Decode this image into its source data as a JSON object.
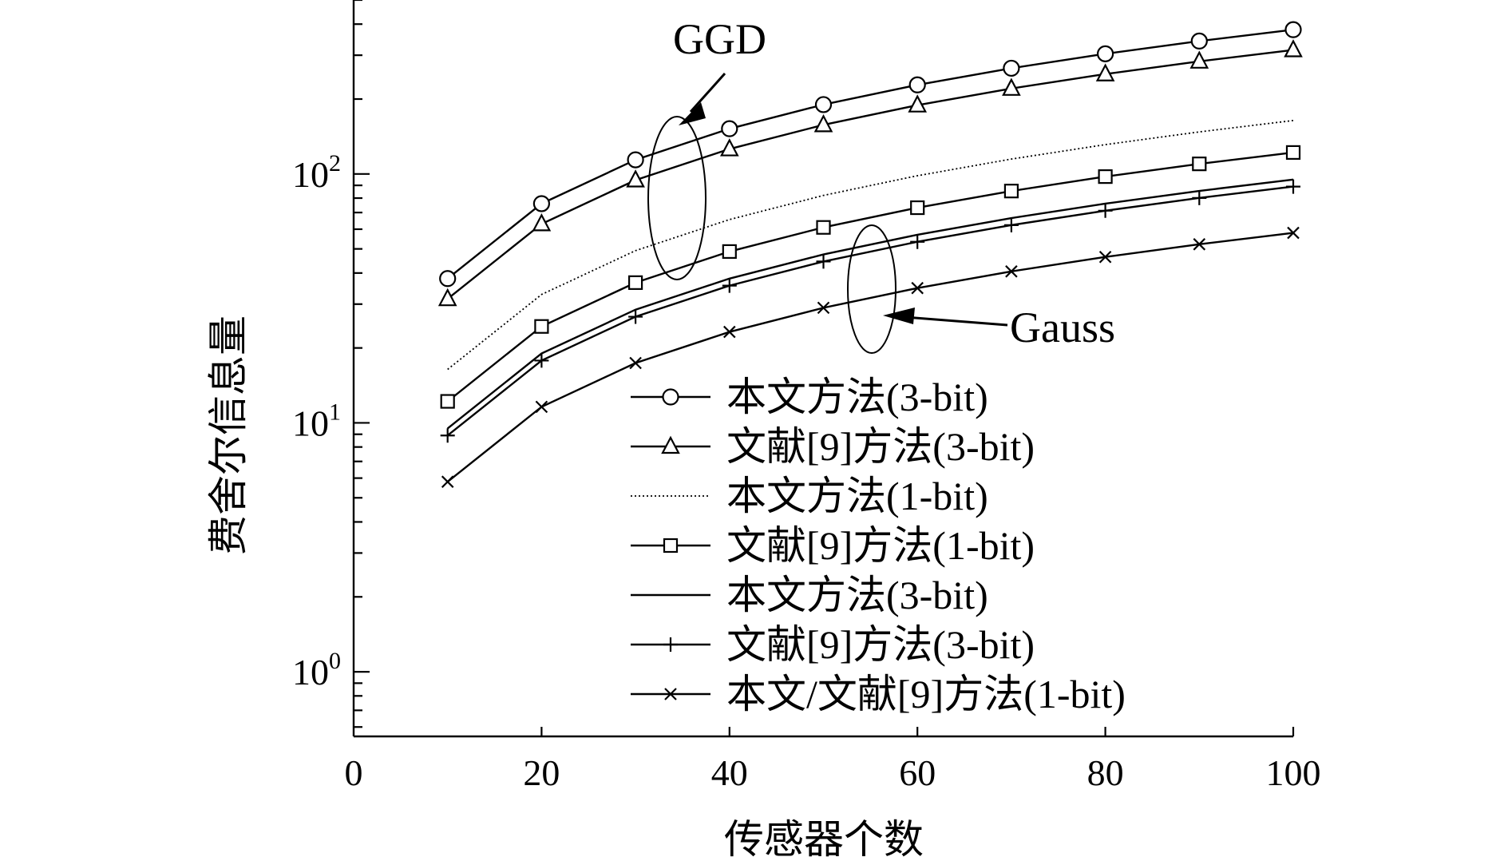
{
  "chart_data": {
    "type": "line",
    "xlabel": "传感器个数",
    "ylabel": "费舍尔信息量",
    "xlim": [
      0,
      100
    ],
    "ylim": [
      0.55,
      500
    ],
    "yscale": "log",
    "xticks": [
      0,
      20,
      40,
      60,
      80,
      100
    ],
    "yticks": [
      {
        "value": 1,
        "base": "10",
        "exp": "0"
      },
      {
        "value": 10,
        "base": "10",
        "exp": "1"
      },
      {
        "value": 100,
        "base": "10",
        "exp": "2"
      }
    ],
    "grid": false,
    "legend_position": "bottom-right",
    "x": [
      10,
      20,
      30,
      40,
      50,
      60,
      70,
      80,
      90,
      100
    ],
    "series": [
      {
        "name": "本文方法(3-bit)",
        "marker": "circle",
        "style": "solid",
        "values": [
          38,
          76,
          114,
          152,
          190,
          228,
          266,
          304,
          342,
          380
        ]
      },
      {
        "name": "文献[9]方法(3-bit)",
        "marker": "triangle",
        "style": "solid",
        "values": [
          31.5,
          63,
          94.5,
          126,
          157.5,
          189,
          220.5,
          252,
          283.5,
          315
        ]
      },
      {
        "name": "本文方法(1-bit)",
        "marker": "none",
        "style": "dotted",
        "values": [
          16.4,
          32.8,
          49.2,
          65.6,
          82,
          98.4,
          114.8,
          131.2,
          147.6,
          164
        ]
      },
      {
        "name": "文献[9]方法(1-bit)",
        "marker": "square",
        "style": "solid",
        "values": [
          12.2,
          24.4,
          36.6,
          48.8,
          61,
          73.2,
          85.4,
          97.6,
          109.8,
          122
        ]
      },
      {
        "name": "本文方法(3-bit)",
        "marker": "none",
        "style": "solid",
        "values": [
          9.5,
          19,
          28.5,
          38,
          47.5,
          57,
          66.5,
          76,
          85.5,
          95
        ]
      },
      {
        "name": "文献[9]方法(3-bit)",
        "marker": "plus",
        "style": "solid",
        "values": [
          8.9,
          17.8,
          26.7,
          35.6,
          44.5,
          53.4,
          62.3,
          71.2,
          80.1,
          89
        ]
      },
      {
        "name": "本文/文献[9]方法(1-bit)",
        "marker": "x",
        "style": "solid",
        "values": [
          5.8,
          11.6,
          17.4,
          23.2,
          29,
          34.8,
          40.6,
          46.4,
          52.2,
          58
        ]
      }
    ],
    "annotations": [
      {
        "text": "GGD",
        "points_to": "3-bit 曲线组",
        "at": {
          "x": 33.5,
          "y": 60
        }
      },
      {
        "text": "Gauss",
        "points_to": "1-bit 曲线组",
        "at": {
          "x": 55.5,
          "y": 30
        }
      }
    ]
  }
}
